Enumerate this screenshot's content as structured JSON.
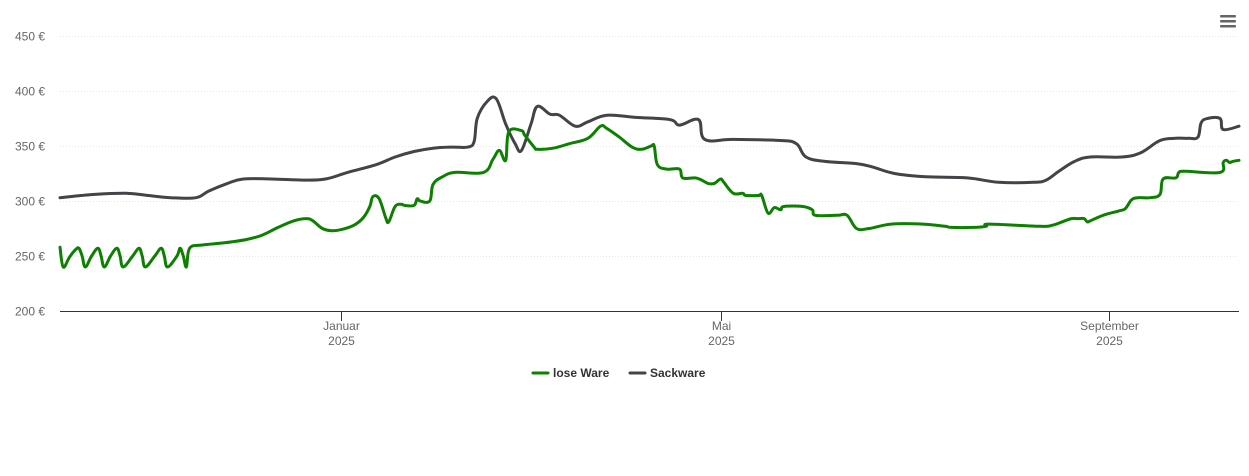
{
  "menu": {
    "icon": "hamburger-menu-icon"
  },
  "chart_data": {
    "type": "line",
    "title": "",
    "xlabel": "",
    "ylabel": "",
    "ylim": [
      200,
      450
    ],
    "yticks": [
      200,
      250,
      300,
      350,
      400,
      450
    ],
    "ytick_labels": [
      "200 €",
      "250 €",
      "300 €",
      "350 €",
      "400 €",
      "450 €"
    ],
    "xticks": [
      {
        "date": "2025-01-01",
        "line1": "Januar",
        "line2": "2025"
      },
      {
        "date": "2025-05-01",
        "line1": "Mai",
        "line2": "2025"
      },
      {
        "date": "2025-09-01",
        "line1": "September",
        "line2": "2025"
      }
    ],
    "xlim": [
      "2024-10-04",
      "2025-10-12"
    ],
    "grid": true,
    "legend_position": "bottom-center",
    "series": [
      {
        "name": "lose Ware",
        "color": "#0d8001",
        "points": [
          [
            "2024-10-04",
            258
          ],
          [
            "2024-10-05",
            240
          ],
          [
            "2024-10-07",
            249
          ],
          [
            "2024-10-09",
            256
          ],
          [
            "2024-10-10",
            257
          ],
          [
            "2024-10-11",
            250
          ],
          [
            "2024-10-12",
            240
          ],
          [
            "2024-10-14",
            250
          ],
          [
            "2024-10-16",
            257
          ],
          [
            "2024-10-17",
            250
          ],
          [
            "2024-10-18",
            240
          ],
          [
            "2024-10-20",
            250
          ],
          [
            "2024-10-22",
            257
          ],
          [
            "2024-10-23",
            250
          ],
          [
            "2024-10-24",
            240
          ],
          [
            "2024-10-27",
            250
          ],
          [
            "2024-10-29",
            257
          ],
          [
            "2024-10-30",
            250
          ],
          [
            "2024-10-31",
            240
          ],
          [
            "2024-11-03",
            250
          ],
          [
            "2024-11-05",
            257
          ],
          [
            "2024-11-06",
            250
          ],
          [
            "2024-11-07",
            240
          ],
          [
            "2024-11-10",
            250
          ],
          [
            "2024-11-11",
            257
          ],
          [
            "2024-11-12",
            250
          ],
          [
            "2024-11-13",
            240
          ],
          [
            "2024-11-14",
            257
          ],
          [
            "2024-11-18",
            260
          ],
          [
            "2024-11-25",
            262
          ],
          [
            "2024-12-02",
            265
          ],
          [
            "2024-12-07",
            269
          ],
          [
            "2024-12-12",
            276
          ],
          [
            "2024-12-17",
            282
          ],
          [
            "2024-12-21",
            284
          ],
          [
            "2024-12-23",
            282
          ],
          [
            "2024-12-26",
            275
          ],
          [
            "2024-12-29",
            273
          ],
          [
            "2025-01-01",
            274
          ],
          [
            "2025-01-05",
            278
          ],
          [
            "2025-01-08",
            285
          ],
          [
            "2025-01-10",
            295
          ],
          [
            "2025-01-11",
            304
          ],
          [
            "2025-01-13",
            302
          ],
          [
            "2025-01-15",
            285
          ],
          [
            "2025-01-16",
            281
          ],
          [
            "2025-01-18",
            295
          ],
          [
            "2025-01-20",
            297
          ],
          [
            "2025-01-21",
            296
          ],
          [
            "2025-01-24",
            296
          ],
          [
            "2025-01-25",
            302
          ],
          [
            "2025-01-26",
            300
          ],
          [
            "2025-01-29",
            300
          ],
          [
            "2025-01-30",
            315
          ],
          [
            "2025-02-02",
            322
          ],
          [
            "2025-02-06",
            326
          ],
          [
            "2025-02-15",
            326
          ],
          [
            "2025-02-18",
            338
          ],
          [
            "2025-02-20",
            346
          ],
          [
            "2025-02-22",
            337
          ],
          [
            "2025-02-23",
            363
          ],
          [
            "2025-02-27",
            364
          ],
          [
            "2025-02-28",
            360
          ],
          [
            "2025-03-03",
            349
          ],
          [
            "2025-03-04",
            347
          ],
          [
            "2025-03-09",
            348
          ],
          [
            "2025-03-14",
            352
          ],
          [
            "2025-03-20",
            357
          ],
          [
            "2025-03-24",
            368
          ],
          [
            "2025-03-26",
            366
          ],
          [
            "2025-03-30",
            358
          ],
          [
            "2025-04-03",
            349
          ],
          [
            "2025-04-06",
            347
          ],
          [
            "2025-04-09",
            350
          ],
          [
            "2025-04-10",
            350
          ],
          [
            "2025-04-11",
            333
          ],
          [
            "2025-04-14",
            329
          ],
          [
            "2025-04-18",
            329
          ],
          [
            "2025-04-19",
            321
          ],
          [
            "2025-04-23",
            321
          ],
          [
            "2025-04-25",
            319
          ],
          [
            "2025-04-27",
            316
          ],
          [
            "2025-04-29",
            316
          ],
          [
            "2025-05-01",
            320
          ],
          [
            "2025-05-02",
            317
          ],
          [
            "2025-05-05",
            307
          ],
          [
            "2025-05-08",
            307
          ],
          [
            "2025-05-09",
            305
          ],
          [
            "2025-05-13",
            305
          ],
          [
            "2025-05-14",
            305
          ],
          [
            "2025-05-16",
            289
          ],
          [
            "2025-05-18",
            294
          ],
          [
            "2025-05-20",
            292
          ],
          [
            "2025-05-21",
            295
          ],
          [
            "2025-05-27",
            295
          ],
          [
            "2025-05-30",
            292
          ],
          [
            "2025-05-31",
            287
          ],
          [
            "2025-06-07",
            287
          ],
          [
            "2025-06-10",
            287
          ],
          [
            "2025-06-13",
            275
          ],
          [
            "2025-06-17",
            275
          ],
          [
            "2025-06-24",
            279
          ],
          [
            "2025-07-04",
            279
          ],
          [
            "2025-07-11",
            277
          ],
          [
            "2025-07-13",
            276
          ],
          [
            "2025-07-20",
            276
          ],
          [
            "2025-07-24",
            277
          ],
          [
            "2025-07-25",
            279
          ],
          [
            "2025-08-10",
            277
          ],
          [
            "2025-08-14",
            278
          ],
          [
            "2025-08-17",
            281
          ],
          [
            "2025-08-20",
            284
          ],
          [
            "2025-08-22",
            284
          ],
          [
            "2025-08-24",
            284
          ],
          [
            "2025-08-25",
            281
          ],
          [
            "2025-08-26",
            282
          ],
          [
            "2025-08-30",
            287
          ],
          [
            "2025-09-04",
            291
          ],
          [
            "2025-09-06",
            293
          ],
          [
            "2025-09-08",
            301
          ],
          [
            "2025-09-10",
            303
          ],
          [
            "2025-09-14",
            303
          ],
          [
            "2025-09-17",
            306
          ],
          [
            "2025-09-18",
            320
          ],
          [
            "2025-09-22",
            321
          ],
          [
            "2025-09-23",
            326
          ],
          [
            "2025-09-25",
            327
          ],
          [
            "2025-10-06",
            326
          ],
          [
            "2025-10-07",
            335
          ],
          [
            "2025-10-08",
            337
          ],
          [
            "2025-10-09",
            335
          ],
          [
            "2025-10-10",
            336
          ],
          [
            "2025-10-12",
            337
          ]
        ]
      },
      {
        "name": "Sackware",
        "color": "#434348",
        "points": [
          [
            "2024-10-04",
            303
          ],
          [
            "2024-10-15",
            306
          ],
          [
            "2024-10-25",
            307
          ],
          [
            "2024-11-01",
            305
          ],
          [
            "2024-11-08",
            303
          ],
          [
            "2024-11-16",
            303
          ],
          [
            "2024-11-20",
            309
          ],
          [
            "2024-11-26",
            316
          ],
          [
            "2024-12-01",
            320
          ],
          [
            "2024-12-10",
            320
          ],
          [
            "2024-12-20",
            319
          ],
          [
            "2024-12-27",
            320
          ],
          [
            "2025-01-03",
            326
          ],
          [
            "2025-01-12",
            333
          ],
          [
            "2025-01-18",
            340
          ],
          [
            "2025-01-24",
            345
          ],
          [
            "2025-01-30",
            348
          ],
          [
            "2025-02-05",
            349
          ],
          [
            "2025-02-10",
            349
          ],
          [
            "2025-02-12",
            354
          ],
          [
            "2025-02-13",
            375
          ],
          [
            "2025-02-16",
            390
          ],
          [
            "2025-02-19",
            393
          ],
          [
            "2025-02-22",
            370
          ],
          [
            "2025-02-25",
            352
          ],
          [
            "2025-02-27",
            346
          ],
          [
            "2025-03-02",
            370
          ],
          [
            "2025-03-04",
            386
          ],
          [
            "2025-03-08",
            379
          ],
          [
            "2025-03-11",
            378
          ],
          [
            "2025-03-16",
            368
          ],
          [
            "2025-03-20",
            372
          ],
          [
            "2025-03-26",
            378
          ],
          [
            "2025-04-04",
            376
          ],
          [
            "2025-04-15",
            374
          ],
          [
            "2025-04-18",
            369
          ],
          [
            "2025-04-24",
            374
          ],
          [
            "2025-04-26",
            356
          ],
          [
            "2025-05-05",
            356
          ],
          [
            "2025-05-20",
            355
          ],
          [
            "2025-05-25",
            352
          ],
          [
            "2025-05-28",
            340
          ],
          [
            "2025-06-03",
            336
          ],
          [
            "2025-06-13",
            334
          ],
          [
            "2025-06-18",
            331
          ],
          [
            "2025-06-25",
            325
          ],
          [
            "2025-07-05",
            322
          ],
          [
            "2025-07-18",
            321
          ],
          [
            "2025-07-28",
            317
          ],
          [
            "2025-08-08",
            317
          ],
          [
            "2025-08-12",
            319
          ],
          [
            "2025-08-16",
            327
          ],
          [
            "2025-08-21",
            336
          ],
          [
            "2025-08-26",
            340
          ],
          [
            "2025-09-05",
            340
          ],
          [
            "2025-09-11",
            344
          ],
          [
            "2025-09-17",
            355
          ],
          [
            "2025-09-22",
            357
          ],
          [
            "2025-09-26",
            357
          ],
          [
            "2025-09-29",
            358
          ],
          [
            "2025-09-30",
            371
          ],
          [
            "2025-10-02",
            375
          ],
          [
            "2025-10-06",
            375
          ],
          [
            "2025-10-07",
            365
          ],
          [
            "2025-10-12",
            368
          ]
        ]
      }
    ]
  }
}
